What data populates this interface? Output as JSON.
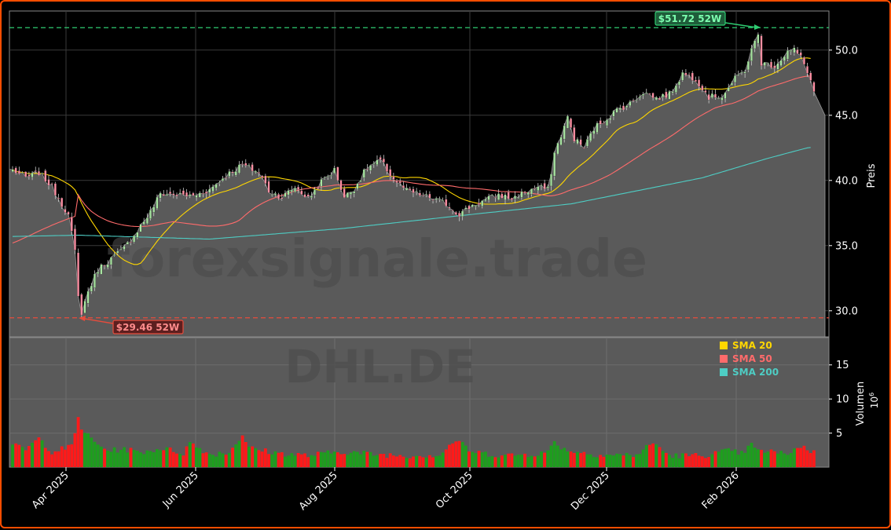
{
  "chart_data": {
    "type": "candlestick",
    "watermark": "forexsignale.trade",
    "ticker_watermark": "DHL.DE",
    "price_axis": {
      "label": "Preis",
      "ylim": [
        28.0,
        53.0
      ],
      "ticks": [
        "30.0",
        "35.0",
        "40.0",
        "45.0",
        "50.0"
      ],
      "position": "right"
    },
    "volume_axis": {
      "label": "Volumen",
      "exponent_label": "10",
      "exponent_power": "6",
      "ylim": [
        0,
        19
      ],
      "ticks": [
        "5",
        "10",
        "15"
      ],
      "unit_multiplier": 1000000
    },
    "x_axis": {
      "ticks": [
        "Apr 2025",
        "Jun 2025",
        "Aug 2025",
        "Oct 2025",
        "Dec 2025",
        "Feb 2026"
      ],
      "rotation": 45
    },
    "annotations": {
      "high_52w": {
        "label": "$51.72 52W",
        "value": 51.72,
        "color": "#2ecc71"
      },
      "low_52w": {
        "label": "$29.46 52W",
        "value": 29.46,
        "color": "#e74c3c"
      }
    },
    "legend": {
      "position": "lower-right of price panel",
      "items": [
        {
          "name": "SMA 20",
          "color": "#ffd700"
        },
        {
          "name": "SMA 50",
          "color": "#ff6b6b"
        },
        {
          "name": "SMA 200",
          "color": "#4ecdc4"
        }
      ]
    },
    "grid": true,
    "close_anchors": [
      [
        0,
        40.8
      ],
      [
        4,
        40.2
      ],
      [
        8,
        40.6
      ],
      [
        12,
        39.5
      ],
      [
        15,
        38.2
      ],
      [
        17,
        37.3
      ],
      [
        19,
        34.5
      ],
      [
        20,
        31.0
      ],
      [
        21,
        29.9
      ],
      [
        23,
        31.5
      ],
      [
        26,
        33.2
      ],
      [
        30,
        34.0
      ],
      [
        34,
        34.8
      ],
      [
        38,
        36.2
      ],
      [
        42,
        37.6
      ],
      [
        45,
        39.0
      ],
      [
        50,
        38.9
      ],
      [
        55,
        38.8
      ],
      [
        60,
        39.3
      ],
      [
        65,
        40.4
      ],
      [
        70,
        41.2
      ],
      [
        75,
        40.6
      ],
      [
        78,
        39.2
      ],
      [
        82,
        38.7
      ],
      [
        86,
        39.5
      ],
      [
        90,
        38.6
      ],
      [
        94,
        39.9
      ],
      [
        98,
        40.8
      ],
      [
        101,
        38.7
      ],
      [
        104,
        39.4
      ],
      [
        108,
        41.0
      ],
      [
        112,
        41.5
      ],
      [
        116,
        40.1
      ],
      [
        120,
        39.2
      ],
      [
        124,
        38.9
      ],
      [
        128,
        38.6
      ],
      [
        132,
        38.2
      ],
      [
        136,
        37.4
      ],
      [
        140,
        38.1
      ],
      [
        144,
        38.5
      ],
      [
        148,
        38.9
      ],
      [
        152,
        38.6
      ],
      [
        156,
        39.1
      ],
      [
        160,
        39.5
      ],
      [
        163,
        39.3
      ],
      [
        165,
        42.1
      ],
      [
        167,
        43.5
      ],
      [
        169,
        44.8
      ],
      [
        171,
        43.2
      ],
      [
        174,
        42.5
      ],
      [
        177,
        44.0
      ],
      [
        180,
        44.6
      ],
      [
        184,
        45.4
      ],
      [
        188,
        45.9
      ],
      [
        192,
        46.8
      ],
      [
        196,
        46.3
      ],
      [
        200,
        46.6
      ],
      [
        204,
        48.2
      ],
      [
        208,
        47.8
      ],
      [
        212,
        46.4
      ],
      [
        216,
        46.5
      ],
      [
        220,
        47.8
      ],
      [
        223,
        48.5
      ],
      [
        225,
        50.0
      ],
      [
        227,
        51.2
      ],
      [
        228,
        49.0
      ],
      [
        232,
        48.8
      ],
      [
        236,
        49.9
      ],
      [
        238,
        50.0
      ],
      [
        240,
        49.4
      ],
      [
        242,
        48.4
      ],
      [
        244,
        46.8
      ]
    ],
    "volume_anchors": [
      [
        0,
        3.2
      ],
      [
        4,
        2.6
      ],
      [
        8,
        4.2
      ],
      [
        12,
        2.3
      ],
      [
        18,
        3.0
      ],
      [
        20,
        7.2
      ],
      [
        21,
        5.8
      ],
      [
        23,
        4.6
      ],
      [
        26,
        3.2
      ],
      [
        30,
        2.4
      ],
      [
        34,
        2.7
      ],
      [
        38,
        2.2
      ],
      [
        42,
        2.4
      ],
      [
        45,
        2.8
      ],
      [
        52,
        2.1
      ],
      [
        54,
        3.6
      ],
      [
        60,
        1.9
      ],
      [
        66,
        2.2
      ],
      [
        70,
        4.8
      ],
      [
        72,
        2.8
      ],
      [
        80,
        2.1
      ],
      [
        90,
        1.7
      ],
      [
        100,
        2.3
      ],
      [
        110,
        1.9
      ],
      [
        120,
        1.7
      ],
      [
        130,
        1.8
      ],
      [
        135,
        4.0
      ],
      [
        140,
        2.2
      ],
      [
        150,
        1.7
      ],
      [
        160,
        2.0
      ],
      [
        163,
        2.2
      ],
      [
        165,
        3.8
      ],
      [
        168,
        2.6
      ],
      [
        175,
        2.0
      ],
      [
        180,
        1.8
      ],
      [
        190,
        1.8
      ],
      [
        195,
        3.6
      ],
      [
        200,
        1.7
      ],
      [
        210,
        1.7
      ],
      [
        218,
        2.4
      ],
      [
        222,
        2.0
      ],
      [
        225,
        3.3
      ],
      [
        227,
        2.3
      ],
      [
        230,
        2.4
      ],
      [
        235,
        1.9
      ],
      [
        238,
        2.6
      ],
      [
        240,
        3.1
      ],
      [
        244,
        2.2
      ]
    ],
    "n_bars": 245
  }
}
